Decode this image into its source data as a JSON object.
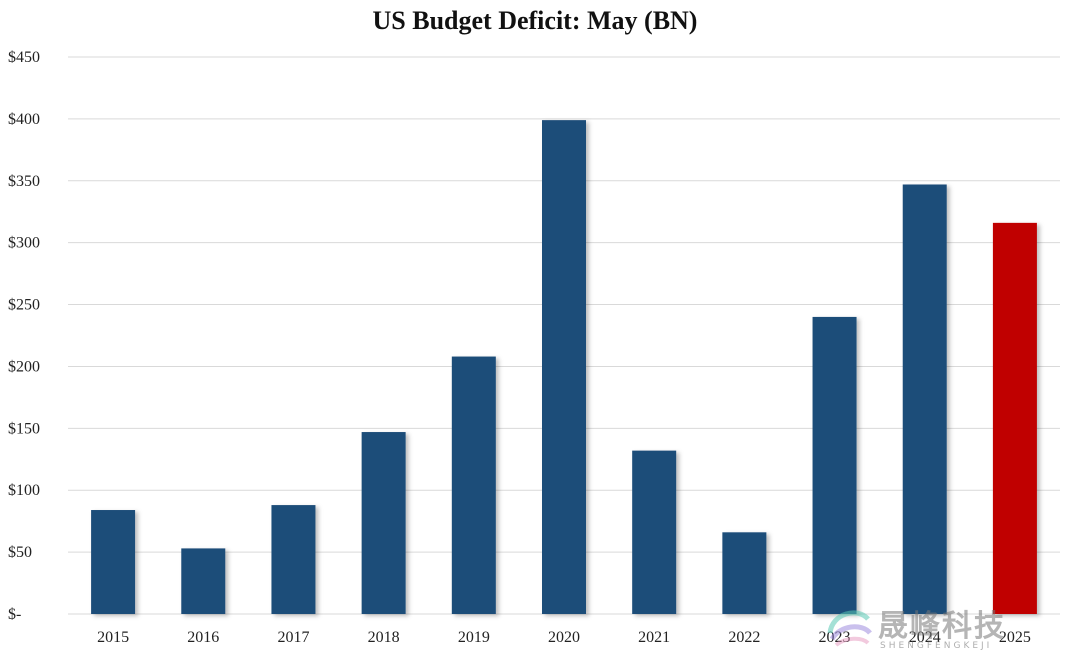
{
  "chart_data": {
    "type": "bar",
    "title": "US Budget Deficit: May (BN)",
    "categories": [
      "2015",
      "2016",
      "2017",
      "2018",
      "2019",
      "2020",
      "2021",
      "2022",
      "2023",
      "2024",
      "2025"
    ],
    "values": [
      84,
      53,
      88,
      147,
      208,
      399,
      132,
      66,
      240,
      347,
      316
    ],
    "ylim": [
      0,
      450
    ],
    "y_ticks": [
      0,
      50,
      100,
      150,
      200,
      250,
      300,
      350,
      400,
      450
    ],
    "y_tick_labels": [
      "$-",
      "$50",
      "$100",
      "$150",
      "$200",
      "$250",
      "$300",
      "$350",
      "$400",
      "$450"
    ],
    "xlabel": "",
    "ylabel": "",
    "grid": true,
    "colors": {
      "default": "#1f4e79",
      "highlight": "#c00000"
    },
    "highlight_category": "2025"
  },
  "watermark": {
    "text_cn": "晟峰科技",
    "text_en": "SHENGFENGKEJI"
  }
}
